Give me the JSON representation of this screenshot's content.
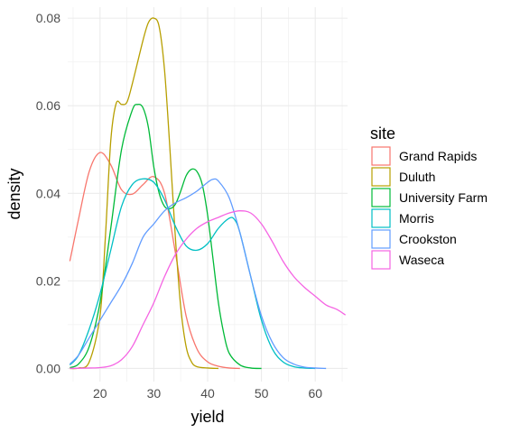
{
  "chart_data": {
    "type": "line",
    "title": "",
    "xlabel": "yield",
    "ylabel": "density",
    "xlim": [
      14,
      66
    ],
    "ylim": [
      -0.003,
      0.0825
    ],
    "x_ticks": [
      20,
      30,
      40,
      50,
      60
    ],
    "y_ticks": [
      0.0,
      0.02,
      0.04,
      0.06,
      0.08
    ],
    "y_tick_labels": [
      "0.00",
      "0.02",
      "0.04",
      "0.06",
      "0.08"
    ],
    "grid": true,
    "legend": {
      "title": "site",
      "position": "right"
    },
    "series": [
      {
        "name": "Grand Rapids",
        "color": "#F8766D",
        "points": [
          [
            14.4,
            0.0245
          ],
          [
            16,
            0.034
          ],
          [
            18,
            0.045
          ],
          [
            20,
            0.0493
          ],
          [
            22,
            0.0465
          ],
          [
            24,
            0.0408
          ],
          [
            26,
            0.0398
          ],
          [
            28,
            0.042
          ],
          [
            30,
            0.0438
          ],
          [
            32,
            0.04
          ],
          [
            34,
            0.0265
          ],
          [
            36,
            0.012
          ],
          [
            38,
            0.0045
          ],
          [
            40,
            0.0015
          ],
          [
            42,
            0.0005
          ],
          [
            44,
            0.0001
          ],
          [
            46,
            0.0
          ]
        ]
      },
      {
        "name": "Duluth",
        "color": "#B79F00",
        "points": [
          [
            14.4,
            0.0
          ],
          [
            16,
            0.0001
          ],
          [
            18,
            0.0015
          ],
          [
            20,
            0.012
          ],
          [
            21,
            0.03
          ],
          [
            22,
            0.052
          ],
          [
            23,
            0.0605
          ],
          [
            24,
            0.0603
          ],
          [
            25,
            0.0608
          ],
          [
            26,
            0.065
          ],
          [
            28,
            0.075
          ],
          [
            29,
            0.079
          ],
          [
            30,
            0.08
          ],
          [
            31,
            0.078
          ],
          [
            32,
            0.068
          ],
          [
            33,
            0.05
          ],
          [
            34,
            0.03
          ],
          [
            35,
            0.014
          ],
          [
            36,
            0.005
          ],
          [
            37,
            0.0015
          ],
          [
            38,
            0.0004
          ],
          [
            40,
            0.0001
          ],
          [
            42,
            0.0
          ]
        ]
      },
      {
        "name": "University Farm",
        "color": "#00BA38",
        "points": [
          [
            14.4,
            0.0002
          ],
          [
            16,
            0.001
          ],
          [
            18,
            0.005
          ],
          [
            20,
            0.015
          ],
          [
            22,
            0.032
          ],
          [
            24,
            0.05
          ],
          [
            26,
            0.059
          ],
          [
            27,
            0.0603
          ],
          [
            28,
            0.0595
          ],
          [
            29,
            0.055
          ],
          [
            30,
            0.046
          ],
          [
            31,
            0.04
          ],
          [
            32,
            0.037
          ],
          [
            33,
            0.0365
          ],
          [
            34,
            0.0375
          ],
          [
            35,
            0.0405
          ],
          [
            36,
            0.044
          ],
          [
            37,
            0.0455
          ],
          [
            38,
            0.045
          ],
          [
            39,
            0.042
          ],
          [
            40,
            0.035
          ],
          [
            41,
            0.025
          ],
          [
            42,
            0.015
          ],
          [
            43,
            0.008
          ],
          [
            44,
            0.0035
          ],
          [
            46,
            0.0008
          ],
          [
            48,
            0.0001
          ],
          [
            50,
            0.0
          ]
        ]
      },
      {
        "name": "Morris",
        "color": "#00BFC4",
        "points": [
          [
            14.4,
            0.0008
          ],
          [
            16,
            0.003
          ],
          [
            18,
            0.009
          ],
          [
            20,
            0.017
          ],
          [
            22,
            0.027
          ],
          [
            24,
            0.037
          ],
          [
            26,
            0.042
          ],
          [
            28,
            0.0433
          ],
          [
            30,
            0.0425
          ],
          [
            32,
            0.0385
          ],
          [
            34,
            0.0325
          ],
          [
            36,
            0.028
          ],
          [
            38,
            0.027
          ],
          [
            40,
            0.0285
          ],
          [
            42,
            0.032
          ],
          [
            44,
            0.0343
          ],
          [
            45,
            0.034
          ],
          [
            46,
            0.031
          ],
          [
            48,
            0.021
          ],
          [
            50,
            0.011
          ],
          [
            52,
            0.0045
          ],
          [
            54,
            0.0015
          ],
          [
            56,
            0.0004
          ],
          [
            58,
            0.0001
          ],
          [
            60,
            0.0
          ]
        ]
      },
      {
        "name": "Crookston",
        "color": "#619CFF",
        "points": [
          [
            14.4,
            0.001
          ],
          [
            16,
            0.003
          ],
          [
            18,
            0.007
          ],
          [
            20,
            0.011
          ],
          [
            22,
            0.015
          ],
          [
            24,
            0.019
          ],
          [
            26,
            0.024
          ],
          [
            28,
            0.03
          ],
          [
            30,
            0.033
          ],
          [
            32,
            0.036
          ],
          [
            34,
            0.0378
          ],
          [
            36,
            0.039
          ],
          [
            38,
            0.0405
          ],
          [
            40,
            0.0425
          ],
          [
            41,
            0.0432
          ],
          [
            42,
            0.0428
          ],
          [
            44,
            0.039
          ],
          [
            46,
            0.031
          ],
          [
            48,
            0.021
          ],
          [
            50,
            0.012
          ],
          [
            52,
            0.006
          ],
          [
            54,
            0.0025
          ],
          [
            56,
            0.001
          ],
          [
            58,
            0.0003
          ],
          [
            60,
            0.0001
          ],
          [
            62,
            0.0
          ]
        ]
      },
      {
        "name": "Waseca",
        "color": "#F564E3",
        "points": [
          [
            14.4,
            0.0
          ],
          [
            18,
            0.0001
          ],
          [
            20,
            0.0002
          ],
          [
            22,
            0.0006
          ],
          [
            24,
            0.002
          ],
          [
            26,
            0.005
          ],
          [
            28,
            0.01
          ],
          [
            30,
            0.015
          ],
          [
            32,
            0.021
          ],
          [
            34,
            0.026
          ],
          [
            36,
            0.0295
          ],
          [
            38,
            0.032
          ],
          [
            40,
            0.0335
          ],
          [
            42,
            0.0345
          ],
          [
            44,
            0.0355
          ],
          [
            46,
            0.036
          ],
          [
            48,
            0.0355
          ],
          [
            50,
            0.033
          ],
          [
            52,
            0.029
          ],
          [
            54,
            0.0245
          ],
          [
            56,
            0.021
          ],
          [
            58,
            0.0185
          ],
          [
            60,
            0.0165
          ],
          [
            62,
            0.0145
          ],
          [
            64,
            0.0135
          ],
          [
            65.6,
            0.0122
          ]
        ]
      }
    ]
  }
}
